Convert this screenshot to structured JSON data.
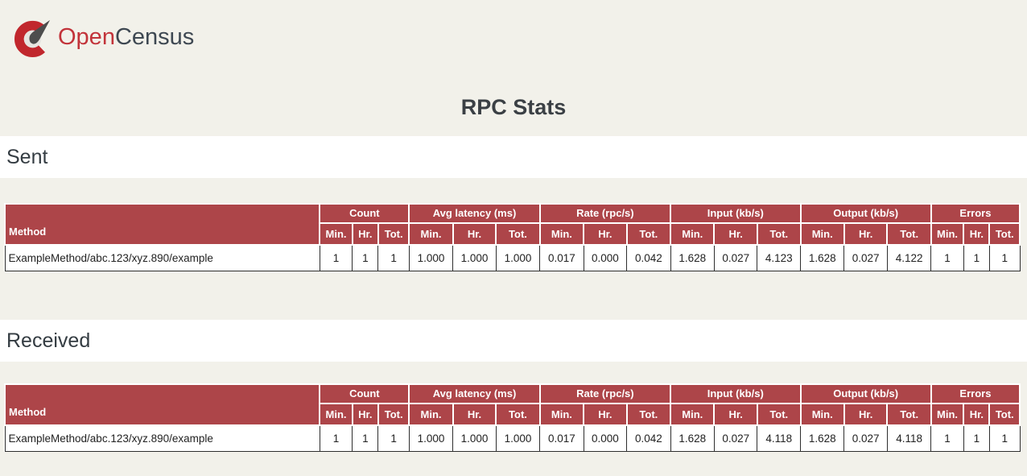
{
  "colors": {
    "page_bg": "#f2f1ea",
    "table_header_red": "#ad4549",
    "logo_red": "#c1272d",
    "band_bg": "#ffffff"
  },
  "brand": {
    "logo_icon": "opencensus-gauge-icon",
    "open": "Open",
    "census": "Census"
  },
  "title": "RPC Stats",
  "table_template": {
    "method_header": "Method",
    "group_headers": [
      "Count",
      "Avg latency (ms)",
      "Rate (rpc/s)",
      "Input (kb/s)",
      "Output (kb/s)",
      "Errors"
    ],
    "sub_headers": [
      "Min.",
      "Hr.",
      "Tot."
    ]
  },
  "sections": [
    {
      "heading": "Sent",
      "rows": [
        {
          "method": "ExampleMethod/abc.123/xyz.890/example",
          "values": [
            "1",
            "1",
            "1",
            "1.000",
            "1.000",
            "1.000",
            "0.017",
            "0.000",
            "0.042",
            "1.628",
            "0.027",
            "4.123",
            "1.628",
            "0.027",
            "4.122",
            "1",
            "1",
            "1"
          ]
        }
      ]
    },
    {
      "heading": "Received",
      "rows": [
        {
          "method": "ExampleMethod/abc.123/xyz.890/example",
          "values": [
            "1",
            "1",
            "1",
            "1.000",
            "1.000",
            "1.000",
            "0.017",
            "0.000",
            "0.042",
            "1.628",
            "0.027",
            "4.118",
            "1.628",
            "0.027",
            "4.118",
            "1",
            "1",
            "1"
          ]
        }
      ]
    }
  ]
}
